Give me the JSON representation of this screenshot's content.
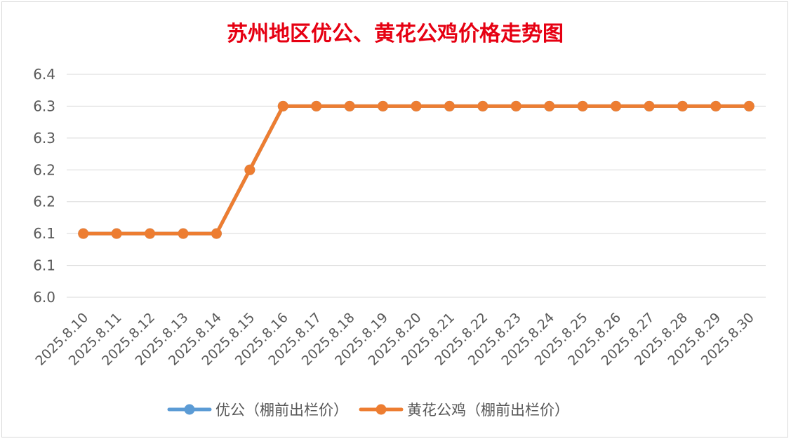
{
  "chart_data": {
    "type": "line",
    "title": "苏州地区优公、黄花公鸡价格走势图",
    "categories": [
      "2025.8.10",
      "2025.8.11",
      "2025.8.12",
      "2025.8.13",
      "2025.8.14",
      "2025.8.15",
      "2025.8.16",
      "2025.8.17",
      "2025.8.18",
      "2025.8.19",
      "2025.8.20",
      "2025.8.21",
      "2025.8.22",
      "2025.8.23",
      "2025.8.24",
      "2025.8.25",
      "2025.8.26",
      "2025.8.27",
      "2025.8.28",
      "2025.8.29",
      "2025.8.30"
    ],
    "y_ticks": [
      "6.0",
      "6.1",
      "6.1",
      "6.2",
      "6.2",
      "6.3",
      "6.3",
      "6.4"
    ],
    "ylim": [
      6.0,
      6.35
    ],
    "grid": true,
    "legend_position": "bottom",
    "series": [
      {
        "name": "优公（棚前出栏价）",
        "color": "#5b9bd5",
        "values": [
          6.1,
          6.1,
          6.1,
          6.1,
          6.1,
          6.2,
          6.3,
          6.3,
          6.3,
          6.3,
          6.3,
          6.3,
          6.3,
          6.3,
          6.3,
          6.3,
          6.3,
          6.3,
          6.3,
          6.3,
          6.3
        ]
      },
      {
        "name": "黄花公鸡（棚前出栏价）",
        "color": "#ed7d31",
        "values": [
          6.1,
          6.1,
          6.1,
          6.1,
          6.1,
          6.2,
          6.3,
          6.3,
          6.3,
          6.3,
          6.3,
          6.3,
          6.3,
          6.3,
          6.3,
          6.3,
          6.3,
          6.3,
          6.3,
          6.3,
          6.3
        ]
      }
    ]
  }
}
